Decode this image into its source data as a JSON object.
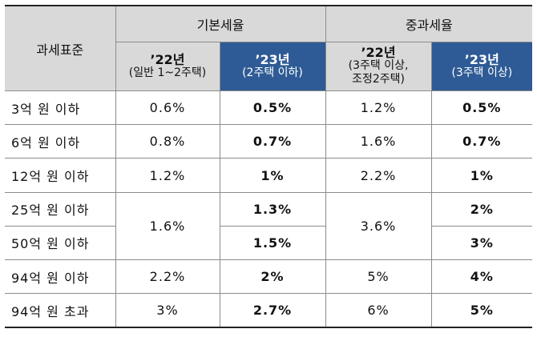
{
  "header": {
    "criterion": "과세표준",
    "basic_rate": "기본세율",
    "heavy_rate": "중과세율",
    "basic_22": {
      "year": "’22년",
      "sub": "(일반 1~2주택)"
    },
    "basic_23": {
      "year": "’23년",
      "sub": "(2주택 이하)"
    },
    "heavy_22": {
      "year": "’22년",
      "sub1": "(3주택 이상,",
      "sub2": "조정2주택)"
    },
    "heavy_23": {
      "year": "’23년",
      "sub": "(3주택 이상)"
    }
  },
  "rows": [
    {
      "label": "3억 원 이하",
      "basic_22": "0.6%",
      "basic_23": "0.5%",
      "heavy_22": "1.2%",
      "heavy_23": "0.5%"
    },
    {
      "label": "6억 원 이하",
      "basic_22": "0.8%",
      "basic_23": "0.7%",
      "heavy_22": "1.6%",
      "heavy_23": "0.7%"
    },
    {
      "label": "12억 원 이하",
      "basic_22": "1.2%",
      "basic_23": "1%",
      "heavy_22": "2.2%",
      "heavy_23": "1%"
    },
    {
      "label": "25억 원 이하",
      "basic_22": "1.6%",
      "basic_23": "1.3%",
      "heavy_22": "3.6%",
      "heavy_23": "2%"
    },
    {
      "label": "50억 원 이하",
      "basic_23": "1.5%",
      "heavy_23": "3%"
    },
    {
      "label": "94억 원 이하",
      "basic_22": "2.2%",
      "basic_23": "2%",
      "heavy_22": "5%",
      "heavy_23": "4%"
    },
    {
      "label": "94억 원 초과",
      "basic_22": "3%",
      "basic_23": "2.7%",
      "heavy_22": "6%",
      "heavy_23": "5%"
    }
  ]
}
